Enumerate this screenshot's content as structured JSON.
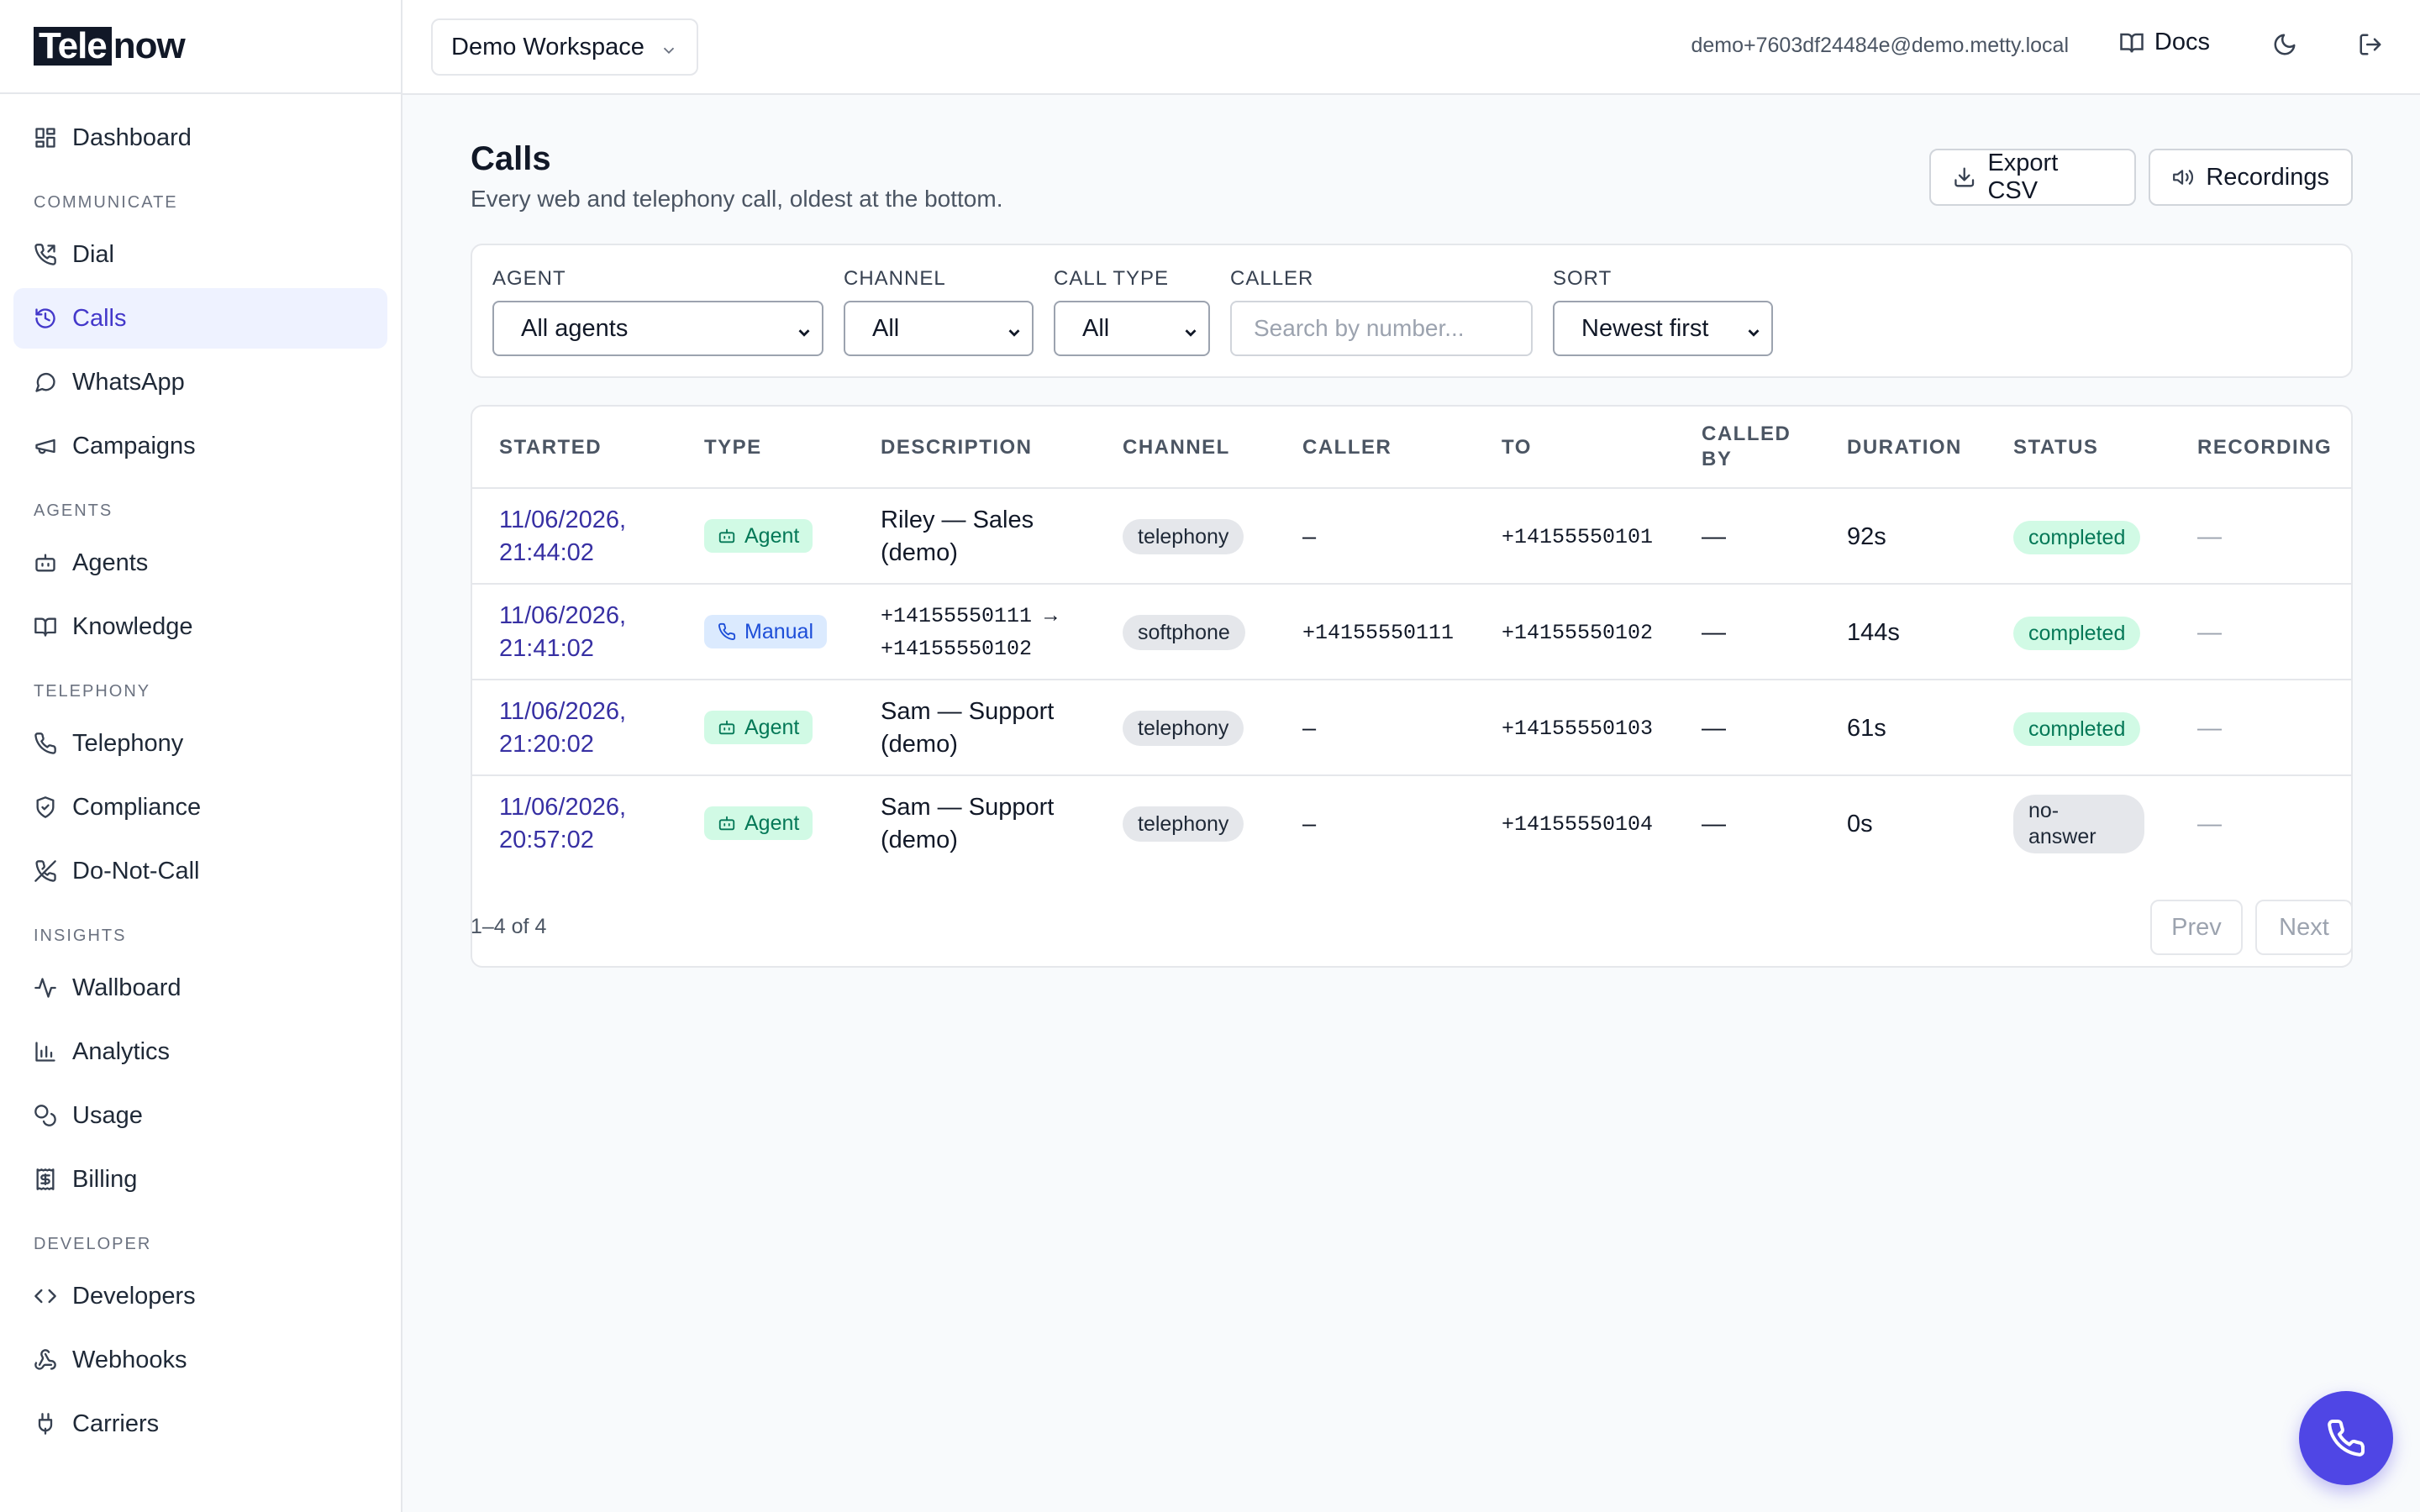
{
  "brand": {
    "part1": "Tele",
    "part2": "now"
  },
  "sidebar": {
    "items": [
      {
        "label": "Dashboard"
      },
      {
        "section": "COMMUNICATE"
      },
      {
        "label": "Dial"
      },
      {
        "label": "Calls"
      },
      {
        "label": "WhatsApp"
      },
      {
        "label": "Campaigns"
      },
      {
        "section": "AGENTS"
      },
      {
        "label": "Agents"
      },
      {
        "label": "Knowledge"
      },
      {
        "section": "TELEPHONY"
      },
      {
        "label": "Telephony"
      },
      {
        "label": "Compliance"
      },
      {
        "label": "Do-Not-Call"
      },
      {
        "section": "INSIGHTS"
      },
      {
        "label": "Wallboard"
      },
      {
        "label": "Analytics"
      },
      {
        "label": "Usage"
      },
      {
        "label": "Billing"
      },
      {
        "section": "DEVELOPER"
      },
      {
        "label": "Developers"
      },
      {
        "label": "Webhooks"
      },
      {
        "label": "Carriers"
      }
    ]
  },
  "topbar": {
    "workspace": "Demo Workspace",
    "email": "demo+7603df24484e@demo.metty.local",
    "docs_label": "Docs"
  },
  "page": {
    "title": "Calls",
    "subtitle": "Every web and telephony call, oldest at the bottom.",
    "export_label": "Export CSV",
    "recordings_label": "Recordings"
  },
  "filters": {
    "agent": {
      "label": "AGENT",
      "value": "All agents"
    },
    "channel": {
      "label": "CHANNEL",
      "value": "All"
    },
    "call_type": {
      "label": "CALL TYPE",
      "value": "All"
    },
    "caller": {
      "label": "CALLER",
      "placeholder": "Search by number..."
    },
    "sort": {
      "label": "SORT",
      "value": "Newest first"
    }
  },
  "table": {
    "headers": {
      "started": "STARTED",
      "type": "TYPE",
      "description": "DESCRIPTION",
      "channel": "CHANNEL",
      "caller": "CALLER",
      "to": "TO",
      "called_by_1": "CALLED",
      "called_by_2": "BY",
      "duration": "DURATION",
      "status": "STATUS",
      "recording": "RECORDING"
    },
    "rows": [
      {
        "started_1": "11/06/2026,",
        "started_2": "21:44:02",
        "type": "Agent",
        "desc_1": "Riley — Sales",
        "desc_2": "(demo)",
        "channel": "telephony",
        "caller": "–",
        "to": "+14155550101",
        "called_by": "—",
        "duration": "92s",
        "status": "completed",
        "recording": "—"
      },
      {
        "started_1": "11/06/2026,",
        "started_2": "21:41:02",
        "type": "Manual",
        "desc_1": "+14155550111 →",
        "desc_2": "+14155550102",
        "channel": "softphone",
        "caller": "+14155550111",
        "to": "+14155550102",
        "called_by": "—",
        "duration": "144s",
        "status": "completed",
        "recording": "—"
      },
      {
        "started_1": "11/06/2026,",
        "started_2": "21:20:02",
        "type": "Agent",
        "desc_1": "Sam — Support",
        "desc_2": "(demo)",
        "channel": "telephony",
        "caller": "–",
        "to": "+14155550103",
        "called_by": "—",
        "duration": "61s",
        "status": "completed",
        "recording": "—"
      },
      {
        "started_1": "11/06/2026,",
        "started_2": "20:57:02",
        "type": "Agent",
        "desc_1": "Sam — Support",
        "desc_2": "(demo)",
        "channel": "telephony",
        "caller": "–",
        "to": "+14155550104",
        "called_by": "—",
        "duration": "0s",
        "status_1": "no-",
        "status_2": "answer",
        "recording": "—"
      }
    ]
  },
  "pagination": {
    "summary": "1–4 of 4",
    "prev": "Prev",
    "next": "Next"
  },
  "colors": {
    "accent": "#4f46e5",
    "active_bg": "#eef2ff",
    "success_bg": "#d1fae5",
    "success_text": "#047857"
  }
}
